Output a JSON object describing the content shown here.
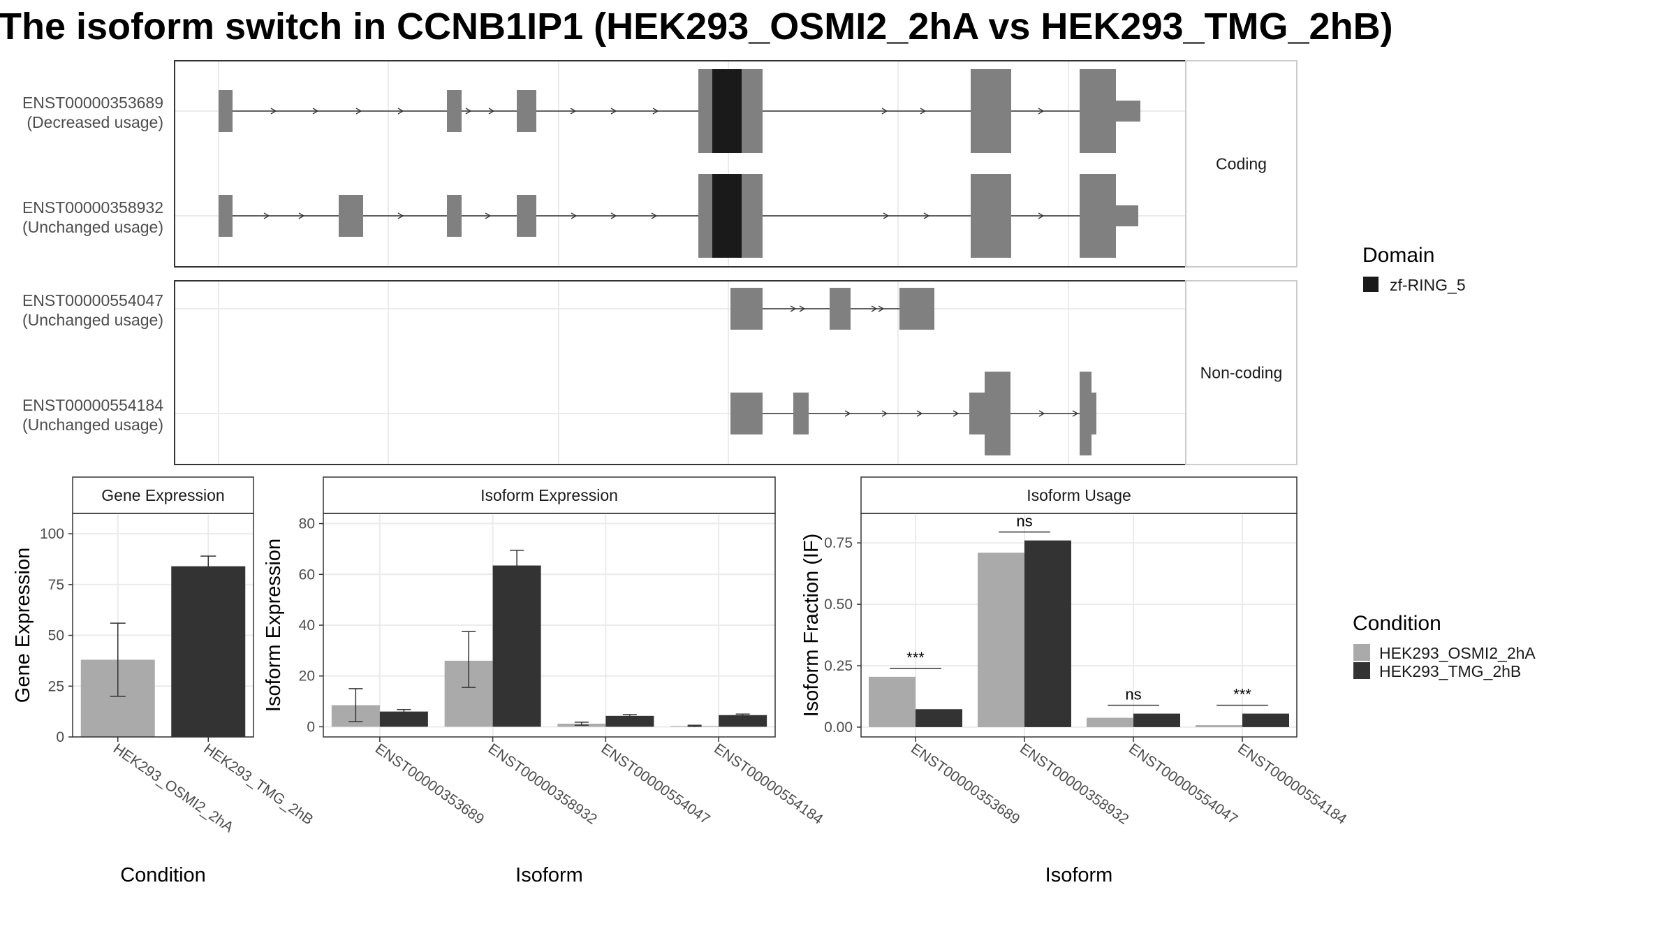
{
  "title": "The isoform switch in CCNB1IP1 (HEK293_OSMI2_2hA vs HEK293_TMG_2hB)",
  "colors": {
    "exon": "#808080",
    "domain": "#1a1a1a",
    "condition1": "#aaaaaa",
    "condition2": "#333333",
    "grid": "#ebebeb",
    "border": "#333333"
  },
  "structure": {
    "panels": [
      {
        "label": "Coding",
        "transcripts": [
          {
            "id": "ENST00000353689",
            "usage": "(Decreased usage)"
          },
          {
            "id": "ENST00000358932",
            "usage": "(Unchanged usage)"
          }
        ]
      },
      {
        "label": "Non-coding",
        "transcripts": [
          {
            "id": "ENST00000554047",
            "usage": "(Unchanged usage)"
          },
          {
            "id": "ENST00000554184",
            "usage": "(Unchanged usage)"
          }
        ]
      }
    ],
    "domain_legend": {
      "title": "Domain",
      "items": [
        {
          "name": "zf-RING_5",
          "color": "#1a1a1a"
        }
      ]
    }
  },
  "chart_data": [
    {
      "type": "bar",
      "panel": "Gene Expression",
      "categories": [
        "HEK293_OSMI2_2hA",
        "HEK293_TMG_2hB"
      ],
      "values": [
        38,
        84
      ],
      "error_low": [
        20,
        78
      ],
      "error_high": [
        56,
        89
      ],
      "xlabel": "Condition",
      "ylabel": "Gene Expression",
      "ylim": [
        0,
        110
      ],
      "yticks": [
        0,
        25,
        50,
        75,
        100
      ]
    },
    {
      "type": "bar",
      "panel": "Isoform Expression",
      "categories": [
        "ENST00000353689",
        "ENST00000358932",
        "ENST00000554047",
        "ENST00000554184"
      ],
      "series": [
        {
          "name": "HEK293_OSMI2_2hA",
          "values": [
            8.5,
            26,
            1.2,
            0.3
          ],
          "error_low": [
            2,
            15.5,
            0.6,
            0.1
          ],
          "error_high": [
            15,
            37.5,
            1.8,
            0.6
          ]
        },
        {
          "name": "HEK293_TMG_2hB",
          "values": [
            6,
            63.5,
            4.3,
            4.6
          ],
          "error_low": [
            5.3,
            57.5,
            3.8,
            4.2
          ],
          "error_high": [
            6.8,
            69.5,
            4.8,
            5
          ]
        }
      ],
      "xlabel": "Isoform",
      "ylabel": "Isoform Expression",
      "ylim": [
        -4,
        84
      ],
      "yticks": [
        0,
        20,
        40,
        60,
        80
      ]
    },
    {
      "type": "bar",
      "panel": "Isoform Usage",
      "categories": [
        "ENST00000353689",
        "ENST00000358932",
        "ENST00000554047",
        "ENST00000554184"
      ],
      "series": [
        {
          "name": "HEK293_OSMI2_2hA",
          "values": [
            0.205,
            0.71,
            0.038,
            0.008
          ]
        },
        {
          "name": "HEK293_TMG_2hB",
          "values": [
            0.073,
            0.76,
            0.055,
            0.055
          ]
        }
      ],
      "significance": [
        "***",
        "ns",
        "ns",
        "***"
      ],
      "xlabel": "Isoform",
      "ylabel": "Isoform Fraction (IF)",
      "ylim": [
        -0.04,
        0.87
      ],
      "yticks": [
        "0.00",
        "0.25",
        "0.50",
        "0.75"
      ]
    }
  ],
  "condition_legend": {
    "title": "Condition",
    "items": [
      "HEK293_OSMI2_2hA",
      "HEK293_TMG_2hB"
    ]
  }
}
